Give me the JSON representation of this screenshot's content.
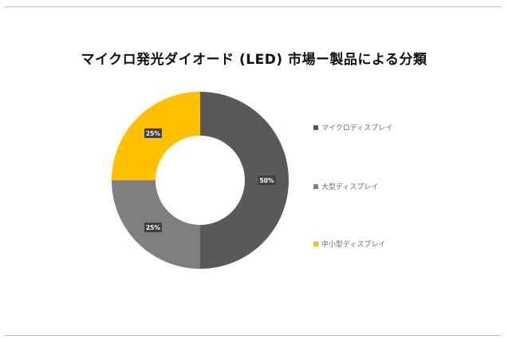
{
  "chart_data": {
    "type": "pie",
    "title": "マイクロ発光ダイオード (LED) 市場ー製品による分類",
    "donut": true,
    "categories": [
      "マイクロディスプレイ",
      "大型ディスプレイ",
      "中小型ディスプレイ"
    ],
    "values": [
      50,
      25,
      25
    ],
    "data_labels": [
      "50%",
      "25%",
      "25%"
    ],
    "colors": [
      "#595959",
      "#7f7f7f",
      "#ffc000"
    ],
    "legend_position": "right"
  }
}
